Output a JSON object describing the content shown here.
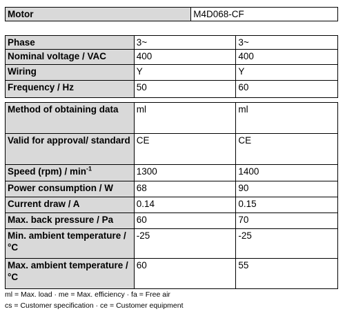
{
  "tables": [
    {
      "rows": [
        [
          "Motor",
          "M4D068-CF"
        ]
      ]
    },
    {
      "rows": [
        [
          "Phase",
          "3~",
          "3~"
        ],
        [
          "Nominal voltage / VAC",
          "400",
          "400"
        ],
        [
          "Wiring",
          "Y",
          "Y"
        ],
        [
          "Frequency / Hz",
          "50",
          "60"
        ]
      ]
    },
    {
      "rows": [
        [
          "Method of obtaining data",
          "ml",
          "ml"
        ],
        [
          "Valid for approval/ standard",
          "CE",
          "CE"
        ],
        [
          "Speed (rpm) / min",
          "1300",
          "1400"
        ],
        [
          "Power consumption / W",
          "68",
          "90"
        ],
        [
          "Current draw / A",
          "0.14",
          "0.15"
        ],
        [
          "Max. back pressure / Pa",
          "60",
          "70"
        ],
        [
          "Min. ambient temperature / °C",
          "-25",
          "-25"
        ],
        [
          "Max. ambient temperature / °C",
          "60",
          "55"
        ]
      ]
    }
  ],
  "speed_unit_exponent": "-1",
  "footnotes": [
    "ml = Max. load · me = Max. efficiency · fa = Free air",
    "cs = Customer specification · ce = Customer equipment"
  ]
}
